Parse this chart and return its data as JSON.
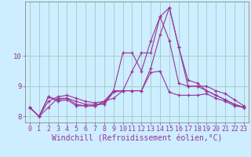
{
  "xlabel": "Windchill (Refroidissement éolien,°C)",
  "background_color": "#cceeff",
  "grid_color": "#aacccc",
  "line_color": "#993399",
  "x": [
    0,
    1,
    2,
    3,
    4,
    5,
    6,
    7,
    8,
    9,
    10,
    11,
    12,
    13,
    14,
    15,
    16,
    17,
    18,
    19,
    20,
    21,
    22,
    23
  ],
  "series": [
    [
      8.3,
      8.0,
      8.65,
      8.55,
      8.6,
      8.4,
      8.35,
      8.35,
      8.45,
      8.85,
      10.1,
      10.1,
      9.5,
      10.5,
      11.3,
      11.6,
      10.3,
      9.0,
      9.0,
      8.85,
      8.7,
      8.55,
      8.4,
      8.3
    ],
    [
      8.3,
      8.0,
      8.65,
      8.5,
      8.55,
      8.35,
      8.35,
      8.35,
      8.5,
      8.6,
      8.85,
      8.85,
      8.85,
      9.6,
      10.7,
      11.6,
      10.3,
      9.2,
      9.1,
      8.85,
      8.7,
      8.55,
      8.4,
      8.3
    ],
    [
      8.3,
      8.0,
      8.5,
      8.65,
      8.7,
      8.6,
      8.5,
      8.45,
      8.5,
      8.85,
      8.85,
      9.5,
      10.1,
      10.1,
      11.3,
      10.5,
      9.1,
      9.0,
      9.0,
      9.0,
      8.85,
      8.75,
      8.55,
      8.35
    ],
    [
      8.3,
      8.0,
      8.3,
      8.6,
      8.6,
      8.5,
      8.4,
      8.4,
      8.4,
      8.8,
      8.85,
      8.85,
      8.85,
      9.45,
      9.5,
      8.8,
      8.7,
      8.7,
      8.7,
      8.75,
      8.6,
      8.5,
      8.35,
      8.3
    ]
  ],
  "ylim": [
    7.8,
    11.8
  ],
  "yticks": [
    8,
    9,
    10
  ],
  "xticks": [
    0,
    1,
    2,
    3,
    4,
    5,
    6,
    7,
    8,
    9,
    10,
    11,
    12,
    13,
    14,
    15,
    16,
    17,
    18,
    19,
    20,
    21,
    22,
    23
  ],
  "tick_fontsize": 6.5,
  "label_fontsize": 7
}
